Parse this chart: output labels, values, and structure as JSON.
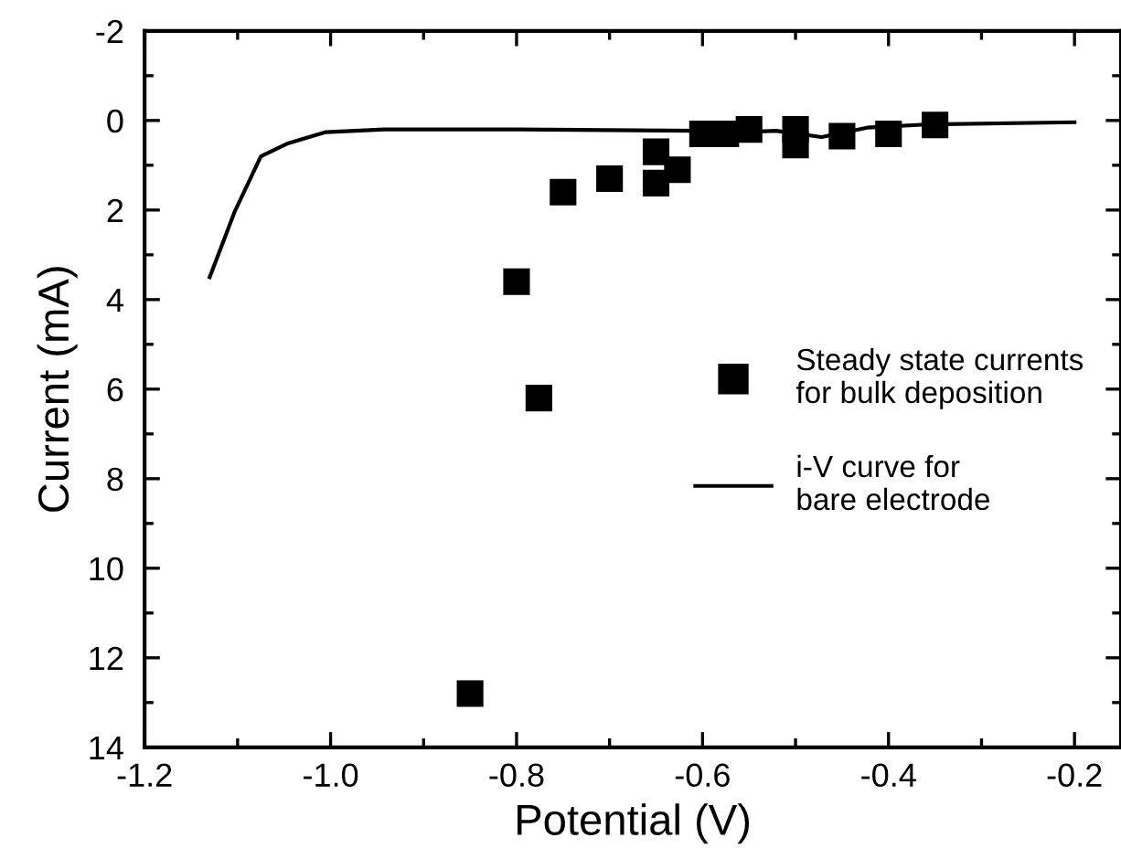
{
  "chart_data": {
    "type": "scatter",
    "xlabel": "Potential (V)",
    "ylabel": "Current (mA)",
    "xlim": [
      -1.2,
      -0.15
    ],
    "ylim": [
      14,
      -2
    ],
    "xticks": [
      {
        "value": -1.2,
        "label": "-1.2"
      },
      {
        "value": -1.1,
        "label": null
      },
      {
        "value": -1.0,
        "label": "-1.0"
      },
      {
        "value": -0.9,
        "label": null
      },
      {
        "value": -0.8,
        "label": "-0.8"
      },
      {
        "value": -0.7,
        "label": null
      },
      {
        "value": -0.6,
        "label": "-0.6"
      },
      {
        "value": -0.5,
        "label": null
      },
      {
        "value": -0.4,
        "label": "-0.4"
      },
      {
        "value": -0.3,
        "label": null
      },
      {
        "value": -0.2,
        "label": "-0.2"
      }
    ],
    "yticks": [
      {
        "value": -2,
        "label": "-2"
      },
      {
        "value": -1,
        "label": null
      },
      0,
      {
        "value": 1,
        "label": null
      },
      2,
      {
        "value": 3,
        "label": null
      },
      4,
      {
        "value": 5,
        "label": null
      },
      6,
      {
        "value": 7,
        "label": null
      },
      8,
      {
        "value": 9,
        "label": null
      },
      10,
      {
        "value": 11,
        "label": null
      },
      12,
      {
        "value": 13,
        "label": null
      },
      14
    ],
    "grid": false,
    "legend": "right",
    "series": [
      {
        "name": "Steady state currents\nfor bulk deposition",
        "marker": "square",
        "color": "#000000",
        "x": [
          -0.85,
          -0.8,
          -0.776,
          -0.75,
          -0.7,
          -0.65,
          -0.65,
          -0.627,
          -0.6,
          -0.575,
          -0.55,
          -0.5,
          -0.5,
          -0.45,
          -0.4,
          -0.35
        ],
        "values": [
          12.8,
          3.6,
          6.2,
          1.6,
          1.3,
          0.7,
          1.4,
          1.1,
          0.3,
          0.3,
          0.2,
          0.2,
          0.55,
          0.35,
          0.3,
          0.1
        ]
      },
      {
        "name": "i-V curve for\nbare electrode",
        "type": "line",
        "marker": "none",
        "line_style": "solid",
        "color": "#000000",
        "x": [
          -1.13,
          -1.103,
          -1.075,
          -1.047,
          -1.005,
          -0.942,
          -0.8,
          -0.605,
          -0.57,
          -0.521,
          -0.472,
          -0.423,
          -0.36,
          -0.2
        ],
        "values": [
          3.5,
          2.03,
          0.8,
          0.52,
          0.26,
          0.2,
          0.2,
          0.23,
          0.27,
          0.23,
          0.37,
          0.16,
          0.09,
          0.04
        ]
      }
    ]
  }
}
